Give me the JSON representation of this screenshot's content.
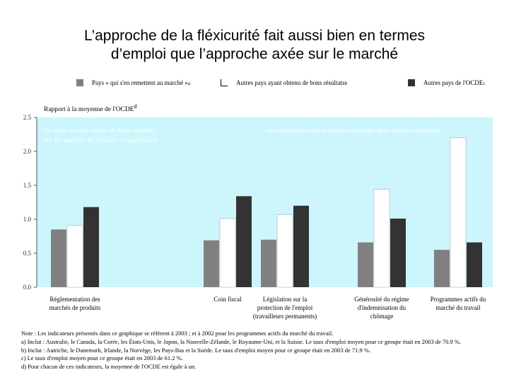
{
  "title_lines": [
    "L’approche de la fléxicurité fait aussi bien en termes",
    "d’emploi que l’approche axée sur le marché"
  ],
  "legend": [
    {
      "label": "Pays « qui s'en remettent au marché »",
      "sup": "a",
      "color": "#808080"
    },
    {
      "label": "Autres pays ayant obtenu de bons résultats",
      "sup": "b",
      "color": "#ffffff"
    },
    {
      "label": "Autres pays de l'OCDE",
      "sup": "c",
      "color": "#333333"
    }
  ],
  "colors": {
    "plot_bg": "#ccf6fb",
    "axis": "#555555",
    "bar_border": "#666666"
  },
  "ylabel": "Rapport à la moyenne de l'OCDE",
  "ylabel_sup": "d",
  "panel_texts": [
    "Les pays qui ont obtenu de bons résultats",
    "sur les marchés de produits concurrentiels…",
    "…mais appliquant des politiques variables dans d'autres domaines"
  ],
  "chart_data": {
    "type": "bar",
    "ylim": [
      0,
      2.5
    ],
    "yticks": [
      "0.0",
      "0.5",
      "1.0",
      "1.5",
      "2.0",
      "2.5"
    ],
    "categories": [
      [
        "Réglementation des",
        "marchés de produits"
      ],
      [
        "Coin fiscal"
      ],
      [
        "Législation sur la",
        "protection de l'emploi",
        "(travailleurs permanents)"
      ],
      [
        "Générosité du régime",
        "d'indemnisation du",
        "chômage"
      ],
      [
        "Programmes actifs du",
        "marché du travail"
      ]
    ],
    "series": [
      {
        "name": "Pays « qui s'en remettent au marché »",
        "values": [
          0.85,
          0.69,
          0.7,
          0.66,
          0.55
        ]
      },
      {
        "name": "Autres pays ayant obtenu de bons résultats",
        "values": [
          0.91,
          1.01,
          1.07,
          1.44,
          2.2
        ]
      },
      {
        "name": "Autres pays de l'OCDE",
        "values": [
          1.18,
          1.34,
          1.2,
          1.01,
          0.66
        ]
      }
    ]
  },
  "notes": [
    "Note : Les indicateurs présentés dans ce graphique se réfèrent à 2003 ; et à 2002 pour les programmes actifs du marché du travail.",
    "a) Inclut : Australie, le Canada, la Corée, les États-Unis, le Japon, la Nouvelle-Zélande, le Royaume-Uni, et la Suisse. Le taux d'emploi moyen pour ce groupe était en 2003 de 70.9 %.",
    "b) Inclut : Autriche, le Danemark, Irlande, la Norvège, les Pays-Bas et la Suède. Le taux d'emploi moyen pour ce groupe était en 2003 de 71.9 %.",
    "c) Le taux d'emploi moyen pour ce groupe était en 2003 de 61.2 %.",
    "d) Pour chacun de ces indicateurs, la moyenne de l'OCDE est égale à un."
  ]
}
